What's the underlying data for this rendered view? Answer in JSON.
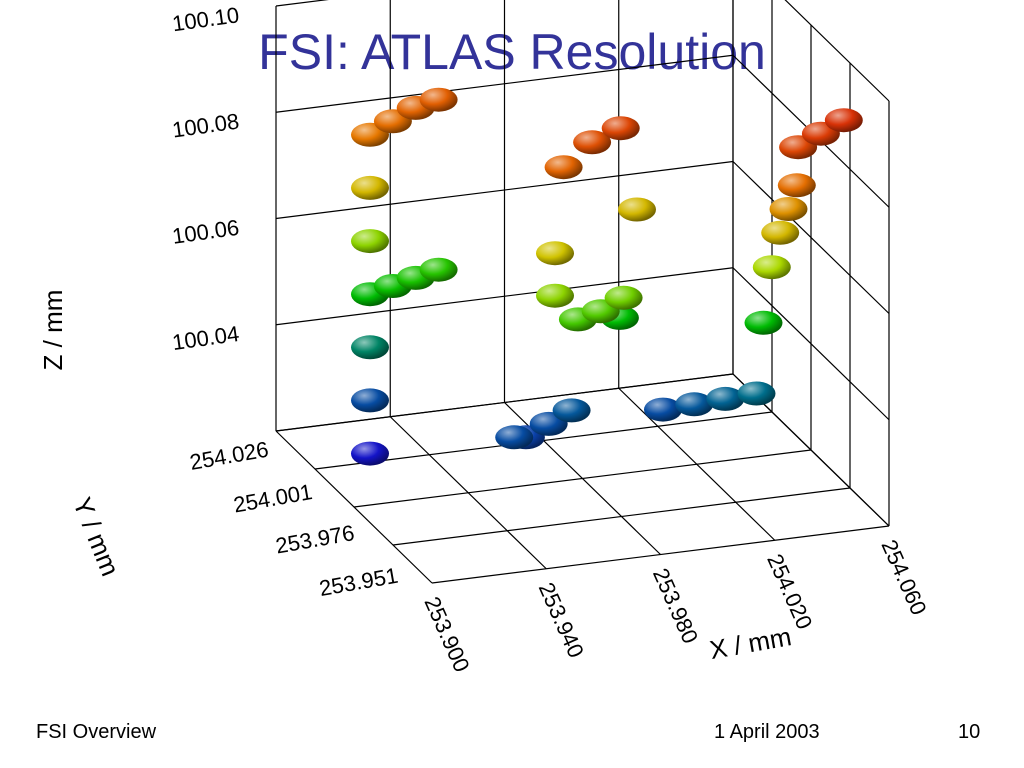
{
  "slide": {
    "title": "FSI: ATLAS Resolution",
    "footer_left": "FSI Overview",
    "footer_date": "1 April 2003",
    "page_number": "10"
  },
  "chart_data": {
    "type": "scatter",
    "title": "",
    "xlabel": "X / mm",
    "ylabel": "Y / mm",
    "zlabel": "Z / mm",
    "xlim": [
      253.9,
      254.06
    ],
    "ylim": [
      253.951,
      254.026
    ],
    "zlim": [
      100.02,
      100.1
    ],
    "x_ticks": [
      "253.900",
      "253.940",
      "253.980",
      "254.020",
      "254.060"
    ],
    "y_ticks": [
      "254.026",
      "254.001",
      "253.976",
      "253.951"
    ],
    "z_ticks": [
      "100.10",
      "100.08",
      "100.06",
      "100.04"
    ],
    "grid": true,
    "point_color_encodes": "z",
    "points": [
      {
        "x": 253.922,
        "y": 253.966,
        "z": 100.02
      },
      {
        "x": 253.922,
        "y": 253.966,
        "z": 100.03
      },
      {
        "x": 253.922,
        "y": 253.966,
        "z": 100.04
      },
      {
        "x": 253.922,
        "y": 253.966,
        "z": 100.05
      },
      {
        "x": 253.922,
        "y": 253.966,
        "z": 100.06
      },
      {
        "x": 253.922,
        "y": 253.966,
        "z": 100.07
      },
      {
        "x": 253.922,
        "y": 253.966,
        "z": 100.08
      },
      {
        "x": 253.93,
        "y": 253.966,
        "z": 100.082
      },
      {
        "x": 253.938,
        "y": 253.966,
        "z": 100.084
      },
      {
        "x": 253.946,
        "y": 253.966,
        "z": 100.085
      },
      {
        "x": 253.93,
        "y": 253.966,
        "z": 100.051
      },
      {
        "x": 253.938,
        "y": 253.966,
        "z": 100.052
      },
      {
        "x": 253.946,
        "y": 253.966,
        "z": 100.053
      },
      {
        "x": 253.955,
        "y": 253.99,
        "z": 100.03
      },
      {
        "x": 253.962,
        "y": 253.986,
        "z": 100.028
      },
      {
        "x": 253.97,
        "y": 253.986,
        "z": 100.03
      },
      {
        "x": 253.978,
        "y": 253.986,
        "z": 100.032
      },
      {
        "x": 253.992,
        "y": 253.99,
        "z": 100.05
      },
      {
        "x": 253.998,
        "y": 253.99,
        "z": 100.07
      },
      {
        "x": 253.962,
        "y": 254.0,
        "z": 100.06
      },
      {
        "x": 253.962,
        "y": 254.0,
        "z": 100.068
      },
      {
        "x": 253.965,
        "y": 254.0,
        "z": 100.084
      },
      {
        "x": 253.975,
        "y": 254.0,
        "z": 100.088
      },
      {
        "x": 253.985,
        "y": 254.0,
        "z": 100.09
      },
      {
        "x": 253.97,
        "y": 254.0,
        "z": 100.055
      },
      {
        "x": 253.978,
        "y": 254.0,
        "z": 100.056
      },
      {
        "x": 253.986,
        "y": 254.0,
        "z": 100.058
      },
      {
        "x": 254.01,
        "y": 253.986,
        "z": 100.03
      },
      {
        "x": 254.018,
        "y": 253.99,
        "z": 100.032
      },
      {
        "x": 254.026,
        "y": 253.994,
        "z": 100.034
      },
      {
        "x": 254.034,
        "y": 253.998,
        "z": 100.036
      },
      {
        "x": 254.035,
        "y": 254.0,
        "z": 100.05
      },
      {
        "x": 254.035,
        "y": 254.004,
        "z": 100.062
      },
      {
        "x": 254.035,
        "y": 254.008,
        "z": 100.07
      },
      {
        "x": 254.035,
        "y": 254.012,
        "z": 100.076
      },
      {
        "x": 254.035,
        "y": 254.016,
        "z": 100.082
      },
      {
        "x": 254.034,
        "y": 254.018,
        "z": 100.09
      },
      {
        "x": 254.042,
        "y": 254.018,
        "z": 100.092
      },
      {
        "x": 254.05,
        "y": 254.018,
        "z": 100.094
      }
    ]
  }
}
